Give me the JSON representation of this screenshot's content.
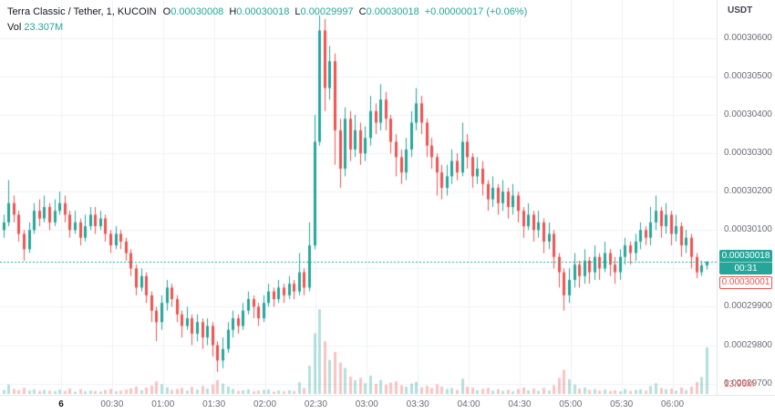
{
  "header": {
    "title": "Terra Classic / Tether, 1, KUCOIN",
    "ohlc": {
      "o_label": "O",
      "o_value": "0.00030008",
      "h_label": "H",
      "h_value": "0.00030018",
      "l_label": "L",
      "l_value": "0.00029997",
      "c_label": "C",
      "c_value": "0.00030018",
      "change": "+0.00000017 (+0.06%)"
    },
    "vol_label": "Vol",
    "vol_value": "23.307M"
  },
  "axis": {
    "currency": "USDT",
    "price_labels": [
      "0.00030600",
      "0.00030500",
      "0.00030400",
      "0.00030300",
      "0.00030200",
      "0.00030100",
      "0.00030000",
      "0.00029900",
      "0.00029800",
      "0.00029700"
    ]
  },
  "badges": {
    "last_price": "0.00030018",
    "countdown": "00:31",
    "secondary_price": "0.00030001",
    "volume_last": "13.96M"
  },
  "colors": {
    "up": "#26a69a",
    "down": "#ef5350",
    "vol_up": "rgba(38,166,154,0.35)",
    "vol_down": "rgba(239,83,80,0.35)",
    "grid": "#eef1f8",
    "background": "#ffffff",
    "axis_text": "#6a6d78",
    "title_text": "#131722"
  },
  "chart_data": {
    "type": "candlestick_with_volume",
    "title": "Terra Classic / Tether, 1, KUCOIN",
    "symbol": "Terra Classic / Tether",
    "exchange": "KUCOIN",
    "interval": "1",
    "quote_currency": "USDT",
    "price_unit": 1e-08,
    "note": "Prices stored as integer units of 1e-8 USDT. candles rows = [open, high, low, close, volume_millions] at 3-minute aggregation; minute 0 = 00:00 of day 6.",
    "ylim_units": [
      29680,
      30690
    ],
    "x_domain": [
      -36,
      386
    ],
    "x_start_minute": -34,
    "interval_minutes": 3,
    "vol_axis_max_millions": 26,
    "last_price_units": 30018,
    "price_ticks_units": [
      30600,
      30500,
      30400,
      30300,
      30200,
      30100,
      30000,
      29900,
      29800,
      29700
    ],
    "time_ticks": [
      {
        "minute": 0,
        "label": "6",
        "emph": true
      },
      {
        "minute": 30,
        "label": "00:30"
      },
      {
        "minute": 60,
        "label": "01:00"
      },
      {
        "minute": 90,
        "label": "01:30"
      },
      {
        "minute": 120,
        "label": "02:00"
      },
      {
        "minute": 150,
        "label": "02:30"
      },
      {
        "minute": 180,
        "label": "03:00"
      },
      {
        "minute": 210,
        "label": "03:30"
      },
      {
        "minute": 240,
        "label": "04:00"
      },
      {
        "minute": 270,
        "label": "04:30"
      },
      {
        "minute": 300,
        "label": "05:00"
      },
      {
        "minute": 330,
        "label": "05:30"
      },
      {
        "minute": 360,
        "label": "06:00"
      }
    ],
    "candles": [
      [
        30100,
        30140,
        30080,
        30120,
        1.2
      ],
      [
        30120,
        30230,
        30110,
        30170,
        2.8
      ],
      [
        30170,
        30190,
        30120,
        30140,
        1.5
      ],
      [
        30140,
        30150,
        30070,
        30090,
        1.1
      ],
      [
        30090,
        30100,
        30020,
        30050,
        1.8
      ],
      [
        30050,
        30120,
        30040,
        30100,
        1.0
      ],
      [
        30100,
        30170,
        30090,
        30150,
        1.4
      ],
      [
        30150,
        30180,
        30110,
        30130,
        0.9
      ],
      [
        30130,
        30190,
        30120,
        30160,
        1.2
      ],
      [
        30160,
        30170,
        30100,
        30120,
        1.0
      ],
      [
        30120,
        30180,
        30110,
        30150,
        0.8
      ],
      [
        30150,
        30200,
        30140,
        30170,
        1.3
      ],
      [
        30170,
        30190,
        30120,
        30140,
        0.9
      ],
      [
        30140,
        30150,
        30080,
        30100,
        1.6
      ],
      [
        30100,
        30150,
        30090,
        30120,
        0.7
      ],
      [
        30120,
        30130,
        30060,
        30080,
        1.4
      ],
      [
        30080,
        30140,
        30070,
        30110,
        0.8
      ],
      [
        30110,
        30160,
        30100,
        30140,
        1.0
      ],
      [
        30140,
        30160,
        30090,
        30110,
        0.9
      ],
      [
        30110,
        30150,
        30100,
        30130,
        0.7
      ],
      [
        30130,
        30140,
        30070,
        30090,
        1.2
      ],
      [
        30090,
        30100,
        30040,
        30060,
        1.5
      ],
      [
        30060,
        30110,
        30050,
        30090,
        0.8
      ],
      [
        30090,
        30100,
        30050,
        30070,
        1.0
      ],
      [
        30070,
        30080,
        30020,
        30040,
        1.3
      ],
      [
        30040,
        30050,
        29980,
        30000,
        1.7
      ],
      [
        30000,
        30010,
        29930,
        29950,
        2.2
      ],
      [
        29950,
        30000,
        29940,
        29980,
        1.1
      ],
      [
        29980,
        29990,
        29910,
        29930,
        1.9
      ],
      [
        29930,
        29940,
        29860,
        29890,
        2.5
      ],
      [
        29890,
        29900,
        29810,
        29860,
        3.8
      ],
      [
        29860,
        29930,
        29840,
        29910,
        2.9
      ],
      [
        29910,
        29970,
        29890,
        29950,
        2.0
      ],
      [
        29950,
        29960,
        29900,
        29920,
        1.2
      ],
      [
        29920,
        29930,
        29860,
        29880,
        1.5
      ],
      [
        29880,
        29890,
        29820,
        29850,
        1.8
      ],
      [
        29850,
        29900,
        29840,
        29870,
        1.0
      ],
      [
        29870,
        29880,
        29800,
        29830,
        2.1
      ],
      [
        29830,
        29880,
        29810,
        29860,
        1.3
      ],
      [
        29860,
        29870,
        29790,
        29820,
        2.4
      ],
      [
        29820,
        29870,
        29800,
        29850,
        1.6
      ],
      [
        29850,
        29860,
        29770,
        29800,
        2.8
      ],
      [
        29800,
        29810,
        29730,
        29760,
        4.2
      ],
      [
        29760,
        29820,
        29740,
        29790,
        3.1
      ],
      [
        29790,
        29860,
        29780,
        29840,
        2.2
      ],
      [
        29840,
        29890,
        29820,
        29870,
        1.5
      ],
      [
        29870,
        29880,
        29830,
        29850,
        0.9
      ],
      [
        29850,
        29910,
        29840,
        29890,
        1.1
      ],
      [
        29890,
        29940,
        29880,
        29920,
        1.4
      ],
      [
        29920,
        29930,
        29870,
        29900,
        0.8
      ],
      [
        29900,
        29910,
        29850,
        29870,
        1.0
      ],
      [
        29870,
        29930,
        29860,
        29910,
        1.2
      ],
      [
        29910,
        29960,
        29900,
        29940,
        1.3
      ],
      [
        29940,
        29950,
        29900,
        29920,
        0.7
      ],
      [
        29920,
        29970,
        29910,
        29950,
        1.0
      ],
      [
        29950,
        29960,
        29910,
        29930,
        0.8
      ],
      [
        29930,
        29980,
        29920,
        29960,
        1.1
      ],
      [
        29960,
        29970,
        29920,
        29940,
        0.9
      ],
      [
        29940,
        30040,
        29930,
        29990,
        3.5
      ],
      [
        29990,
        30000,
        29930,
        29950,
        1.8
      ],
      [
        29950,
        30120,
        29940,
        30060,
        8.5
      ],
      [
        30060,
        30400,
        30050,
        30330,
        18.2
      ],
      [
        30330,
        30660,
        30320,
        30620,
        25.4
      ],
      [
        30620,
        30650,
        30410,
        30470,
        15.8
      ],
      [
        30470,
        30580,
        30440,
        30540,
        10.2
      ],
      [
        30540,
        30560,
        30270,
        30360,
        12.6
      ],
      [
        30360,
        30390,
        30210,
        30260,
        9.4
      ],
      [
        30260,
        30420,
        30240,
        30390,
        7.8
      ],
      [
        30390,
        30410,
        30280,
        30310,
        5.2
      ],
      [
        30310,
        30400,
        30290,
        30360,
        4.1
      ],
      [
        30360,
        30380,
        30270,
        30300,
        4.8
      ],
      [
        30300,
        30370,
        30280,
        30340,
        3.2
      ],
      [
        30340,
        30450,
        30320,
        30410,
        5.5
      ],
      [
        30410,
        30430,
        30350,
        30380,
        3.0
      ],
      [
        30380,
        30480,
        30360,
        30440,
        4.2
      ],
      [
        30440,
        30460,
        30360,
        30390,
        2.8
      ],
      [
        30390,
        30400,
        30300,
        30330,
        3.4
      ],
      [
        30330,
        30350,
        30240,
        30290,
        3.8
      ],
      [
        30290,
        30310,
        30220,
        30250,
        2.6
      ],
      [
        30250,
        30340,
        30230,
        30310,
        2.2
      ],
      [
        30310,
        30410,
        30290,
        30380,
        3.1
      ],
      [
        30380,
        30470,
        30360,
        30430,
        3.6
      ],
      [
        30430,
        30450,
        30350,
        30380,
        2.0
      ],
      [
        30380,
        30390,
        30290,
        30320,
        2.4
      ],
      [
        30320,
        30340,
        30260,
        30290,
        1.8
      ],
      [
        30290,
        30300,
        30190,
        30250,
        2.9
      ],
      [
        30250,
        30270,
        30180,
        30210,
        2.2
      ],
      [
        30210,
        30270,
        30190,
        30240,
        1.5
      ],
      [
        30240,
        30310,
        30220,
        30280,
        1.8
      ],
      [
        30280,
        30300,
        30230,
        30250,
        1.2
      ],
      [
        30250,
        30380,
        30240,
        30330,
        4.6
      ],
      [
        30330,
        30350,
        30260,
        30290,
        2.1
      ],
      [
        30290,
        30300,
        30210,
        30240,
        1.9
      ],
      [
        30240,
        30290,
        30220,
        30260,
        1.1
      ],
      [
        30260,
        30280,
        30190,
        30220,
        1.5
      ],
      [
        30220,
        30230,
        30150,
        30180,
        1.8
      ],
      [
        30180,
        30240,
        30160,
        30210,
        1.0
      ],
      [
        30210,
        30220,
        30140,
        30170,
        1.4
      ],
      [
        30170,
        30230,
        30150,
        30200,
        0.9
      ],
      [
        30200,
        30210,
        30130,
        30160,
        1.2
      ],
      [
        30160,
        30220,
        30140,
        30190,
        0.8
      ],
      [
        30190,
        30200,
        30120,
        30150,
        1.5
      ],
      [
        30150,
        30160,
        30080,
        30110,
        1.9
      ],
      [
        30110,
        30170,
        30100,
        30140,
        1.1
      ],
      [
        30140,
        30150,
        30070,
        30100,
        1.6
      ],
      [
        30100,
        30150,
        30080,
        30120,
        0.9
      ],
      [
        30120,
        30130,
        30040,
        30070,
        1.8
      ],
      [
        30070,
        30120,
        30050,
        30090,
        1.0
      ],
      [
        30090,
        30100,
        30000,
        30030,
        2.6
      ],
      [
        30030,
        30040,
        29950,
        29990,
        4.8
      ],
      [
        29990,
        30000,
        29890,
        29930,
        7.2
      ],
      [
        29930,
        30000,
        29910,
        29970,
        4.4
      ],
      [
        29970,
        30040,
        29950,
        30010,
        2.8
      ],
      [
        30010,
        30020,
        29950,
        29980,
        1.6
      ],
      [
        29980,
        30050,
        29960,
        30020,
        1.9
      ],
      [
        30020,
        30030,
        29960,
        29990,
        1.2
      ],
      [
        29990,
        30060,
        29970,
        30030,
        1.4
      ],
      [
        30030,
        30040,
        29970,
        30000,
        1.0
      ],
      [
        30000,
        30070,
        29990,
        30040,
        1.3
      ],
      [
        30040,
        30050,
        29980,
        30010,
        0.9
      ],
      [
        30010,
        30030,
        29960,
        29990,
        1.1
      ],
      [
        29990,
        30050,
        29970,
        30030,
        0.8
      ],
      [
        30030,
        30080,
        30010,
        30060,
        1.5
      ],
      [
        30060,
        30070,
        30010,
        30040,
        0.9
      ],
      [
        30040,
        30090,
        30020,
        30070,
        1.2
      ],
      [
        30070,
        30120,
        30050,
        30100,
        1.4
      ],
      [
        30100,
        30110,
        30060,
        30080,
        1.0
      ],
      [
        30080,
        30160,
        30060,
        30120,
        2.4
      ],
      [
        30120,
        30190,
        30100,
        30150,
        3.2
      ],
      [
        30150,
        30160,
        30080,
        30110,
        1.8
      ],
      [
        30110,
        30170,
        30090,
        30140,
        1.4
      ],
      [
        30140,
        30150,
        30060,
        30090,
        1.6
      ],
      [
        30090,
        30140,
        30070,
        30110,
        1.0
      ],
      [
        30110,
        30120,
        30030,
        30060,
        1.9
      ],
      [
        30060,
        30100,
        30040,
        30080,
        1.1
      ],
      [
        30080,
        30090,
        30000,
        30030,
        2.2
      ],
      [
        30030,
        30040,
        29975,
        29990,
        3.6
      ],
      [
        29990,
        30020,
        29980,
        30008,
        5.1
      ],
      [
        30008,
        30018,
        29997,
        30018,
        13.96
      ]
    ]
  }
}
